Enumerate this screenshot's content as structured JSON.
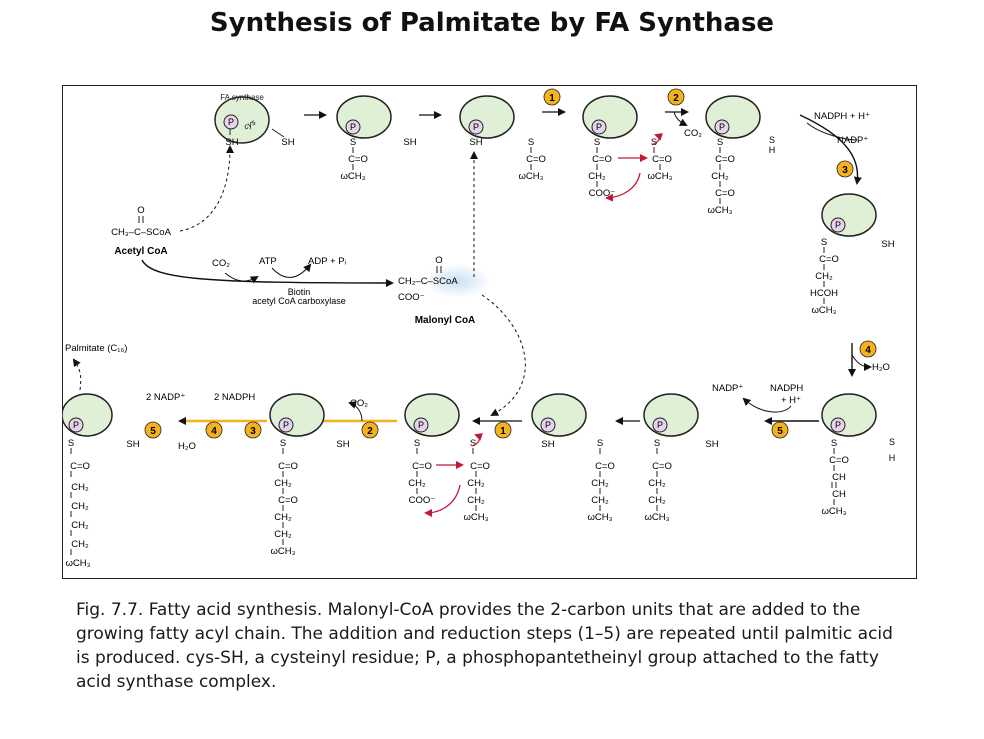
{
  "slide": {
    "title": "Synthesis of Palmitate by FA Synthase",
    "caption": "Fig. 7.7. Fatty acid synthesis. Malonyl-CoA provides the 2-carbon units that are added to the growing fatty acyl chain. The addition and reduction steps (1–5) are repeated until palmitic acid is produced. cys-SH, a cysteinyl residue; P, a phosphopantetheinyl group attached to the fatty acid synthase complex."
  },
  "labels": {
    "fa_synthase": "FA synthase",
    "p": "P",
    "cys": "cys",
    "sh": "SH",
    "s": "S",
    "h": "H",
    "co2": "CO₂",
    "acetyl_formula": "CH₃–C–SCoA",
    "acetyl_name": "Acetyl CoA",
    "atp": "ATP",
    "adp": "ADP + Pᵢ",
    "biotin": "Biotin",
    "carboxylase": "acetyl CoA carboxylase",
    "malonyl_top": "CH₂–C–SCoA",
    "malonyl_coo": "COO⁻",
    "malonyl_name": "Malonyl CoA",
    "nadph_h": "NADPH + H⁺",
    "nadp": "NADP⁺",
    "h2o": "H₂O",
    "nadph": "NADPH",
    "plus_h": "+ H⁺",
    "palmitate": "Palmitate (C₁₆)",
    "two_nadp": "2 NADP⁺",
    "two_nadph": "2 NADPH",
    "o": "O",
    "c_eq_o": "C=O",
    "ch2": "CH₂",
    "ch3": "ωCH₃",
    "coo": "COO⁻",
    "hcoh": "HCOH",
    "ch": "CH",
    "step1": "1",
    "step2": "2",
    "step3": "3",
    "step4": "4",
    "step5": "5"
  },
  "colors": {
    "enzyme_fill": "#dff0d6",
    "p_fill": "#e6d3ec",
    "step_fill": "#f6b21c",
    "malonyl_glow": "#c7ddf3",
    "curved_arrow": "#c0183a"
  }
}
